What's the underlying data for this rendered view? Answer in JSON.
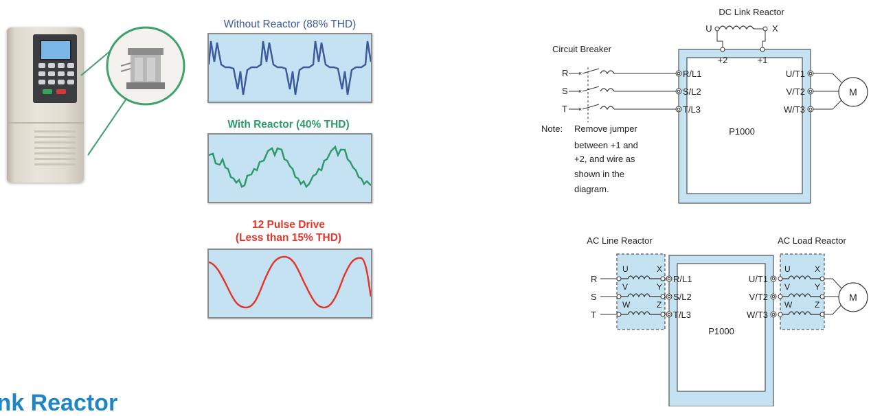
{
  "waveforms": {
    "without_reactor": {
      "title": "Without Reactor (88% THD)",
      "color": "#3d5b9c"
    },
    "with_reactor": {
      "title": "With Reactor (40% THD)",
      "color": "#2e9a6a"
    },
    "twelve_pulse": {
      "title_line1": "12 Pulse Drive",
      "title_line2": "(Less than 15% THD)",
      "color": "#e5352b"
    }
  },
  "dc_diagram": {
    "title": "DC Link Reactor",
    "reactor_u": "U",
    "reactor_x": "X",
    "plus2": "+2",
    "plus1": "+1",
    "breaker_label": "Circuit Breaker",
    "inputs": [
      "R",
      "S",
      "T"
    ],
    "line_terminals": [
      "R/L1",
      "S/L2",
      "T/L3"
    ],
    "load_terminals": [
      "U/T1",
      "V/T2",
      "W/T3"
    ],
    "motor": "M",
    "drive": "P1000",
    "note_label": "Note:",
    "note_lines": [
      "Remove jumper",
      "between +1 and",
      "+2, and wire as",
      "shown in the",
      "diagram."
    ]
  },
  "ac_diagram": {
    "line_reactor_title": "AC Line Reactor",
    "load_reactor_title": "AC Load Reactor",
    "inputs": [
      "R",
      "S",
      "T"
    ],
    "reactor_in": [
      "U",
      "V",
      "W"
    ],
    "reactor_out": [
      "X",
      "Y",
      "Z"
    ],
    "line_terminals": [
      "R/L1",
      "S/L2",
      "T/L3"
    ],
    "load_terminals": [
      "U/T1",
      "V/T2",
      "W/T3"
    ],
    "motor": "M",
    "drive": "P1000"
  },
  "heading": "ink Reactor",
  "colors": {
    "panel_fill": "#c4e2f2",
    "heading": "#1f86c6",
    "wire": "#333333"
  }
}
